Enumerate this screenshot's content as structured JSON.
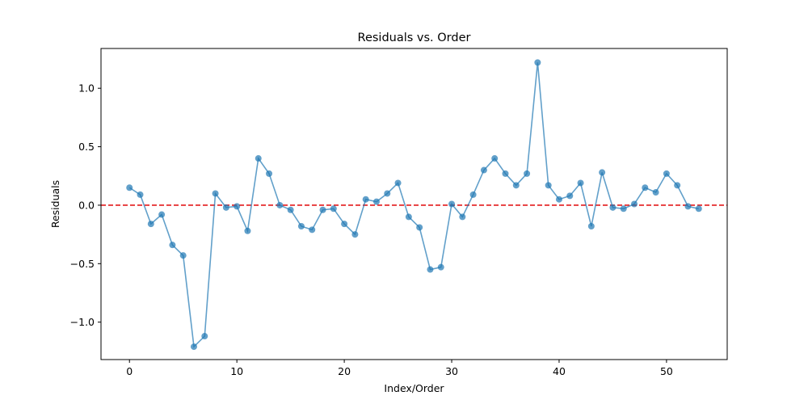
{
  "chart_data": {
    "type": "line",
    "title": "Residuals vs. Order",
    "xlabel": "Index/Order",
    "ylabel": "Residuals",
    "xlim": [
      -2.65,
      55.65
    ],
    "ylim": [
      -1.32,
      1.34
    ],
    "xticks": [
      0,
      10,
      20,
      30,
      40,
      50
    ],
    "yticks": [
      -1.0,
      -0.5,
      0.0,
      0.5,
      1.0
    ],
    "xtick_labels": [
      "0",
      "10",
      "20",
      "30",
      "40",
      "50"
    ],
    "ytick_labels": [
      "−1.0",
      "−0.5",
      "0.0",
      "0.5",
      "1.0"
    ],
    "grid": false,
    "reference_line": {
      "y": 0,
      "color": "#e41a1c",
      "style": "dashed"
    },
    "series": [
      {
        "color": "#1f77b4",
        "marker": "circle",
        "x": [
          0,
          1,
          2,
          3,
          4,
          5,
          6,
          7,
          8,
          9,
          10,
          11,
          12,
          13,
          14,
          15,
          16,
          17,
          18,
          19,
          20,
          21,
          22,
          23,
          24,
          25,
          26,
          27,
          28,
          29,
          30,
          31,
          32,
          33,
          34,
          35,
          36,
          37,
          38,
          39,
          40,
          41,
          42,
          43,
          44,
          45,
          46,
          47,
          48,
          49,
          50,
          51,
          52,
          53
        ],
        "values": [
          0.15,
          0.09,
          -0.16,
          -0.08,
          -0.34,
          -0.43,
          -1.21,
          -1.12,
          0.1,
          -0.02,
          -0.01,
          -0.22,
          0.4,
          0.27,
          0.0,
          -0.04,
          -0.18,
          -0.21,
          -0.04,
          -0.03,
          -0.16,
          -0.25,
          0.05,
          0.03,
          0.1,
          0.19,
          -0.1,
          -0.19,
          -0.55,
          -0.53,
          0.01,
          -0.1,
          0.09,
          0.3,
          0.4,
          0.27,
          0.17,
          0.27,
          1.22,
          0.17,
          0.05,
          0.08,
          0.19,
          -0.18,
          0.28,
          -0.02,
          -0.03,
          0.01,
          0.15,
          0.11,
          0.27,
          0.17,
          -0.01,
          -0.03
        ]
      }
    ]
  }
}
